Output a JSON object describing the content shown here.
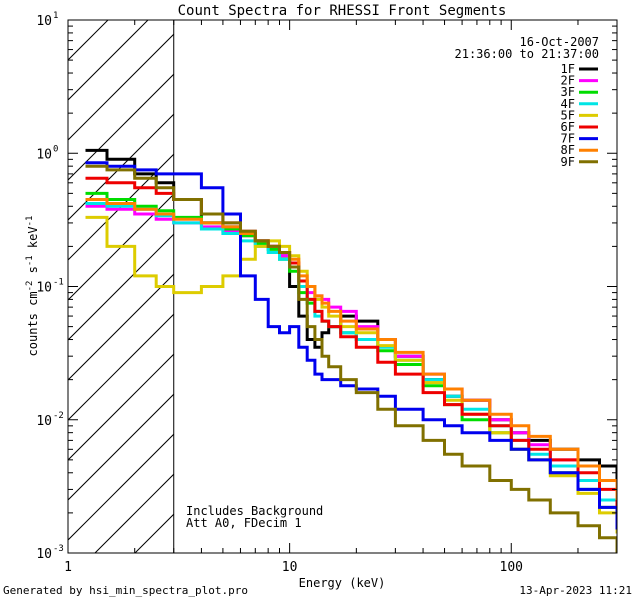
{
  "chart_data": {
    "type": "line",
    "title": "Count Spectra for RHESSI Front Segments",
    "xlabel": "Energy (keV)",
    "ylabel_parts": [
      "counts cm",
      "-2",
      " s",
      "-1",
      " keV",
      "-1"
    ],
    "xscale": "log",
    "yscale": "log",
    "xlim": [
      1,
      300
    ],
    "ylim": [
      0.001,
      10
    ],
    "x_ticks": [
      {
        "value": 1,
        "label": "1"
      },
      {
        "value": 10,
        "label": "10"
      },
      {
        "value": 100,
        "label": "100"
      }
    ],
    "y_ticks": [
      {
        "value": 0.001,
        "base": "10",
        "exp": "-3"
      },
      {
        "value": 0.01,
        "base": "10",
        "exp": "-2"
      },
      {
        "value": 0.1,
        "base": "10",
        "exp": "-1"
      },
      {
        "value": 1,
        "base": "10",
        "exp": "0"
      },
      {
        "value": 10,
        "base": "10",
        "exp": "1"
      }
    ],
    "date": "16-Oct-2007",
    "time_range": "21:36:00 to 21:37:00",
    "hatched_region_kev": [
      1,
      3
    ],
    "annotations": [
      "Includes Background",
      "Att A0, FDecim 1"
    ],
    "series": [
      {
        "name": "1F",
        "color": "#000000",
        "x": [
          1.2,
          1.5,
          2,
          2.5,
          3,
          4,
          5,
          6,
          7,
          8,
          9,
          10,
          11,
          12,
          13,
          14,
          15,
          17,
          20,
          25,
          30,
          40,
          50,
          60,
          80,
          100,
          120,
          150,
          200,
          250,
          300
        ],
        "y": [
          1.05,
          0.9,
          0.7,
          0.6,
          0.45,
          0.3,
          0.28,
          0.25,
          0.22,
          0.2,
          0.17,
          0.1,
          0.06,
          0.04,
          0.035,
          0.045,
          0.05,
          0.06,
          0.055,
          0.04,
          0.03,
          0.02,
          0.015,
          0.014,
          0.01,
          0.008,
          0.007,
          0.006,
          0.005,
          0.0045,
          0.003
        ]
      },
      {
        "name": "2F",
        "color": "#ff00ff",
        "x": [
          1.2,
          1.5,
          2,
          2.5,
          3,
          4,
          5,
          6,
          7,
          8,
          9,
          10,
          11,
          12,
          13,
          14,
          15,
          17,
          20,
          25,
          30,
          40,
          50,
          60,
          80,
          100,
          120,
          150,
          200,
          250,
          300
        ],
        "y": [
          0.4,
          0.38,
          0.35,
          0.32,
          0.3,
          0.28,
          0.26,
          0.24,
          0.22,
          0.2,
          0.17,
          0.14,
          0.1,
          0.09,
          0.085,
          0.08,
          0.07,
          0.065,
          0.05,
          0.04,
          0.03,
          0.022,
          0.017,
          0.014,
          0.01,
          0.008,
          0.0065,
          0.005,
          0.0035,
          0.0025,
          0.0015
        ]
      },
      {
        "name": "3F",
        "color": "#00dd00",
        "x": [
          1.2,
          1.5,
          2,
          2.5,
          3,
          4,
          5,
          6,
          7,
          8,
          9,
          10,
          11,
          12,
          13,
          14,
          15,
          17,
          20,
          25,
          30,
          40,
          50,
          60,
          80,
          100,
          120,
          150,
          200,
          250,
          300
        ],
        "y": [
          0.5,
          0.45,
          0.4,
          0.37,
          0.33,
          0.3,
          0.27,
          0.24,
          0.21,
          0.19,
          0.16,
          0.13,
          0.09,
          0.075,
          0.065,
          0.055,
          0.05,
          0.045,
          0.04,
          0.033,
          0.026,
          0.018,
          0.013,
          0.01,
          0.008,
          0.006,
          0.005,
          0.004,
          0.003,
          0.0022,
          0.0015
        ]
      },
      {
        "name": "4F",
        "color": "#00e5e5",
        "x": [
          1.2,
          1.5,
          2,
          2.5,
          3,
          4,
          5,
          6,
          7,
          8,
          9,
          10,
          11,
          12,
          13,
          14,
          15,
          17,
          20,
          25,
          30,
          40,
          50,
          60,
          80,
          100,
          120,
          150,
          200,
          250,
          300
        ],
        "y": [
          0.42,
          0.4,
          0.38,
          0.34,
          0.3,
          0.27,
          0.25,
          0.22,
          0.2,
          0.18,
          0.16,
          0.14,
          0.1,
          0.08,
          0.06,
          0.055,
          0.05,
          0.045,
          0.04,
          0.035,
          0.028,
          0.02,
          0.015,
          0.012,
          0.009,
          0.007,
          0.0055,
          0.0045,
          0.0035,
          0.0025,
          0.0018
        ]
      },
      {
        "name": "5F",
        "color": "#ddcc00",
        "x": [
          1.2,
          1.5,
          2,
          2.5,
          3,
          4,
          5,
          6,
          7,
          8,
          9,
          10,
          11,
          12,
          13,
          14,
          15,
          17,
          20,
          25,
          30,
          40,
          50,
          60,
          80,
          100,
          120,
          150,
          200,
          250,
          300
        ],
        "y": [
          0.33,
          0.2,
          0.12,
          0.1,
          0.09,
          0.1,
          0.12,
          0.16,
          0.2,
          0.22,
          0.2,
          0.17,
          0.13,
          0.1,
          0.08,
          0.07,
          0.06,
          0.05,
          0.045,
          0.036,
          0.028,
          0.019,
          0.014,
          0.011,
          0.008,
          0.006,
          0.005,
          0.0038,
          0.0028,
          0.002,
          0.0014
        ]
      },
      {
        "name": "6F",
        "color": "#ee0000",
        "x": [
          1.2,
          1.5,
          2,
          2.5,
          3,
          4,
          5,
          6,
          7,
          8,
          9,
          10,
          11,
          12,
          13,
          14,
          15,
          17,
          20,
          25,
          30,
          40,
          50,
          60,
          80,
          100,
          120,
          150,
          200,
          250,
          300
        ],
        "y": [
          0.65,
          0.6,
          0.55,
          0.5,
          0.45,
          0.35,
          0.3,
          0.26,
          0.22,
          0.2,
          0.18,
          0.15,
          0.11,
          0.08,
          0.065,
          0.055,
          0.05,
          0.042,
          0.035,
          0.027,
          0.022,
          0.016,
          0.013,
          0.011,
          0.009,
          0.007,
          0.006,
          0.005,
          0.004,
          0.003,
          0.0022
        ]
      },
      {
        "name": "7F",
        "color": "#0000ee",
        "x": [
          1.2,
          1.5,
          2,
          2.5,
          3,
          4,
          5,
          6,
          7,
          8,
          9,
          10,
          11,
          12,
          13,
          14,
          15,
          17,
          20,
          25,
          30,
          40,
          50,
          60,
          80,
          100,
          120,
          150,
          200,
          250,
          300
        ],
        "y": [
          0.85,
          0.8,
          0.75,
          0.7,
          0.7,
          0.55,
          0.35,
          0.12,
          0.08,
          0.05,
          0.045,
          0.05,
          0.035,
          0.028,
          0.022,
          0.02,
          0.02,
          0.018,
          0.017,
          0.015,
          0.012,
          0.01,
          0.009,
          0.008,
          0.007,
          0.006,
          0.005,
          0.004,
          0.003,
          0.0022,
          0.0015
        ]
      },
      {
        "name": "8F",
        "color": "#ff8000",
        "x": [
          1.2,
          1.5,
          2,
          2.5,
          3,
          4,
          5,
          6,
          7,
          8,
          9,
          10,
          11,
          12,
          13,
          14,
          15,
          17,
          20,
          25,
          30,
          40,
          50,
          60,
          80,
          100,
          120,
          150,
          200,
          250,
          300
        ],
        "y": [
          0.45,
          0.42,
          0.38,
          0.35,
          0.32,
          0.3,
          0.28,
          0.25,
          0.22,
          0.2,
          0.18,
          0.16,
          0.12,
          0.1,
          0.085,
          0.075,
          0.065,
          0.055,
          0.048,
          0.04,
          0.032,
          0.022,
          0.017,
          0.014,
          0.011,
          0.009,
          0.0075,
          0.006,
          0.0045,
          0.0035,
          0.0025
        ]
      },
      {
        "name": "9F",
        "color": "#807000",
        "x": [
          1.2,
          1.5,
          2,
          2.5,
          3,
          4,
          5,
          6,
          7,
          8,
          9,
          10,
          11,
          12,
          13,
          14,
          15,
          17,
          20,
          25,
          30,
          40,
          50,
          60,
          80,
          100,
          120,
          150,
          200,
          250,
          300
        ],
        "y": [
          0.8,
          0.75,
          0.65,
          0.55,
          0.45,
          0.35,
          0.3,
          0.26,
          0.22,
          0.2,
          0.18,
          0.14,
          0.08,
          0.05,
          0.04,
          0.03,
          0.025,
          0.02,
          0.016,
          0.012,
          0.009,
          0.007,
          0.0055,
          0.0045,
          0.0035,
          0.003,
          0.0025,
          0.002,
          0.0016,
          0.0013,
          0.001
        ]
      }
    ]
  },
  "footer": {
    "generated_by": "Generated by hsi_min_spectra_plot.pro",
    "timestamp": "13-Apr-2023 11:21"
  }
}
